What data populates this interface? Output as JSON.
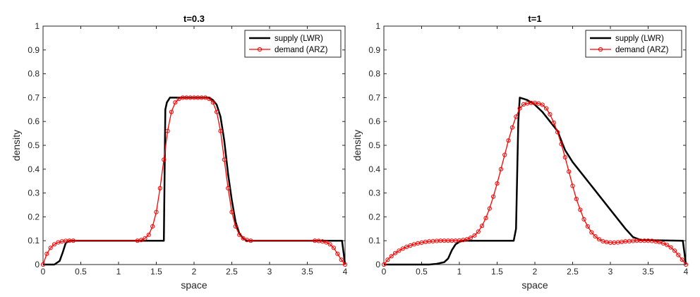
{
  "chart_data": [
    {
      "type": "line",
      "title": "t=0.3",
      "xlabel": "space",
      "ylabel": "density",
      "xlim": [
        0,
        4
      ],
      "ylim": [
        0,
        1
      ],
      "xticks": [
        0,
        0.5,
        1,
        1.5,
        2,
        2.5,
        3,
        3.5,
        4
      ],
      "xtick_labels": [
        "0",
        "0.5",
        "1",
        "1.5",
        "2",
        "2.5",
        "3",
        "3.5",
        "4"
      ],
      "yticks": [
        0,
        0.1,
        0.2,
        0.3,
        0.4,
        0.5,
        0.6,
        0.7,
        0.8,
        0.9,
        1
      ],
      "ytick_labels": [
        "0",
        "0.1",
        "0.2",
        "0.3",
        "0.4",
        "0.5",
        "0.6",
        "0.7",
        "0.8",
        "0.9",
        "1"
      ],
      "legend": {
        "location": "top-right",
        "entries": [
          "supply (LWR)",
          "demand (ARZ)"
        ]
      },
      "series": [
        {
          "name": "supply (LWR)",
          "color": "#000000",
          "marker": "none",
          "x": [
            0,
            0.15,
            0.22,
            0.26,
            0.3,
            0.35,
            1.6,
            1.62,
            1.64,
            1.68,
            1.7,
            1.75,
            2.2,
            2.25,
            2.3,
            2.35,
            2.4,
            2.45,
            2.5,
            2.55,
            2.6,
            2.65,
            2.7,
            2.75,
            3.96,
            3.98,
            4
          ],
          "y": [
            0,
            0,
            0.015,
            0.05,
            0.09,
            0.1,
            0.1,
            0.65,
            0.68,
            0.7,
            0.7,
            0.7,
            0.7,
            0.69,
            0.67,
            0.62,
            0.52,
            0.38,
            0.27,
            0.18,
            0.13,
            0.11,
            0.1,
            0.1,
            0.1,
            0.05,
            0
          ]
        },
        {
          "name": "demand (ARZ)",
          "color": "#ff0000",
          "marker": "circle",
          "x": [
            0,
            0.05,
            0.1,
            0.15,
            0.2,
            0.25,
            0.3,
            0.35,
            0.4,
            1.25,
            1.3,
            1.35,
            1.4,
            1.45,
            1.5,
            1.55,
            1.6,
            1.65,
            1.7,
            1.75,
            1.8,
            1.85,
            1.9,
            1.95,
            2,
            2.05,
            2.1,
            2.15,
            2.2,
            2.25,
            2.3,
            2.35,
            2.4,
            2.45,
            2.5,
            2.55,
            2.6,
            2.65,
            2.7,
            2.75,
            3.6,
            3.65,
            3.7,
            3.75,
            3.8,
            3.85,
            3.9,
            3.95,
            4
          ],
          "y": [
            0,
            0.045,
            0.07,
            0.085,
            0.093,
            0.097,
            0.099,
            0.1,
            0.1,
            0.1,
            0.103,
            0.11,
            0.125,
            0.16,
            0.22,
            0.32,
            0.44,
            0.56,
            0.64,
            0.68,
            0.695,
            0.7,
            0.7,
            0.7,
            0.7,
            0.7,
            0.7,
            0.7,
            0.695,
            0.68,
            0.64,
            0.56,
            0.44,
            0.32,
            0.22,
            0.16,
            0.125,
            0.11,
            0.103,
            0.1,
            0.1,
            0.099,
            0.097,
            0.093,
            0.085,
            0.07,
            0.045,
            0.02,
            0
          ]
        }
      ]
    },
    {
      "type": "line",
      "title": "t=1",
      "xlabel": "space",
      "ylabel": "density",
      "xlim": [
        0,
        4
      ],
      "ylim": [
        0,
        1
      ],
      "xticks": [
        0,
        0.5,
        1,
        1.5,
        2,
        2.5,
        3,
        3.5,
        4
      ],
      "xtick_labels": [
        "0",
        "0.5",
        "1",
        "1.5",
        "2",
        "2.5",
        "3",
        "3.5",
        "4"
      ],
      "yticks": [
        0,
        0.1,
        0.2,
        0.3,
        0.4,
        0.5,
        0.6,
        0.7,
        0.8,
        0.9,
        1
      ],
      "ytick_labels": [
        "0",
        "0.1",
        "0.2",
        "0.3",
        "0.4",
        "0.5",
        "0.6",
        "0.7",
        "0.8",
        "0.9",
        "1"
      ],
      "legend": {
        "location": "top-right",
        "entries": [
          "supply (LWR)",
          "demand (ARZ)"
        ]
      },
      "series": [
        {
          "name": "supply (LWR)",
          "color": "#000000",
          "marker": "none",
          "x": [
            0,
            0.6,
            0.7,
            0.8,
            0.85,
            0.9,
            0.95,
            1,
            1.05,
            1.1,
            1.72,
            1.75,
            1.78,
            1.8,
            1.85,
            1.9,
            2,
            2.1,
            2.2,
            2.3,
            2.4,
            2.5,
            2.6,
            2.8,
            3,
            3.1,
            3.2,
            3.3,
            3.4,
            3.96,
            3.98,
            4
          ],
          "y": [
            0,
            0,
            0.003,
            0.01,
            0.025,
            0.06,
            0.085,
            0.095,
            0.1,
            0.1,
            0.1,
            0.15,
            0.6,
            0.7,
            0.695,
            0.69,
            0.67,
            0.64,
            0.6,
            0.56,
            0.48,
            0.43,
            0.39,
            0.31,
            0.23,
            0.19,
            0.15,
            0.115,
            0.103,
            0.1,
            0.05,
            0
          ]
        },
        {
          "name": "demand (ARZ)",
          "color": "#ff0000",
          "marker": "circle",
          "x": [
            0,
            0.05,
            0.1,
            0.15,
            0.2,
            0.25,
            0.3,
            0.35,
            0.4,
            0.45,
            0.5,
            0.55,
            0.6,
            0.65,
            0.7,
            0.75,
            0.8,
            0.85,
            0.9,
            0.95,
            1,
            1.05,
            1.1,
            1.15,
            1.2,
            1.25,
            1.3,
            1.35,
            1.4,
            1.45,
            1.5,
            1.55,
            1.6,
            1.65,
            1.7,
            1.75,
            1.8,
            1.85,
            1.9,
            1.95,
            2,
            2.05,
            2.1,
            2.15,
            2.2,
            2.25,
            2.3,
            2.35,
            2.4,
            2.45,
            2.5,
            2.55,
            2.6,
            2.65,
            2.7,
            2.75,
            2.8,
            2.85,
            2.9,
            2.95,
            3,
            3.05,
            3.1,
            3.15,
            3.2,
            3.25,
            3.3,
            3.35,
            3.4,
            3.45,
            3.5,
            3.55,
            3.6,
            3.65,
            3.7,
            3.75,
            3.8,
            3.85,
            3.9,
            3.95,
            4
          ],
          "y": [
            0,
            0.02,
            0.035,
            0.048,
            0.058,
            0.067,
            0.074,
            0.08,
            0.085,
            0.089,
            0.092,
            0.095,
            0.097,
            0.098,
            0.099,
            0.1,
            0.1,
            0.1,
            0.1,
            0.1,
            0.101,
            0.103,
            0.106,
            0.112,
            0.122,
            0.138,
            0.162,
            0.195,
            0.235,
            0.285,
            0.34,
            0.4,
            0.46,
            0.52,
            0.575,
            0.62,
            0.655,
            0.672,
            0.676,
            0.678,
            0.678,
            0.675,
            0.67,
            0.655,
            0.63,
            0.595,
            0.555,
            0.505,
            0.45,
            0.39,
            0.33,
            0.275,
            0.23,
            0.19,
            0.16,
            0.135,
            0.118,
            0.106,
            0.098,
            0.094,
            0.092,
            0.092,
            0.093,
            0.095,
            0.097,
            0.098,
            0.099,
            0.1,
            0.1,
            0.1,
            0.1,
            0.099,
            0.097,
            0.094,
            0.089,
            0.082,
            0.072,
            0.058,
            0.04,
            0.02,
            0
          ]
        }
      ]
    }
  ]
}
